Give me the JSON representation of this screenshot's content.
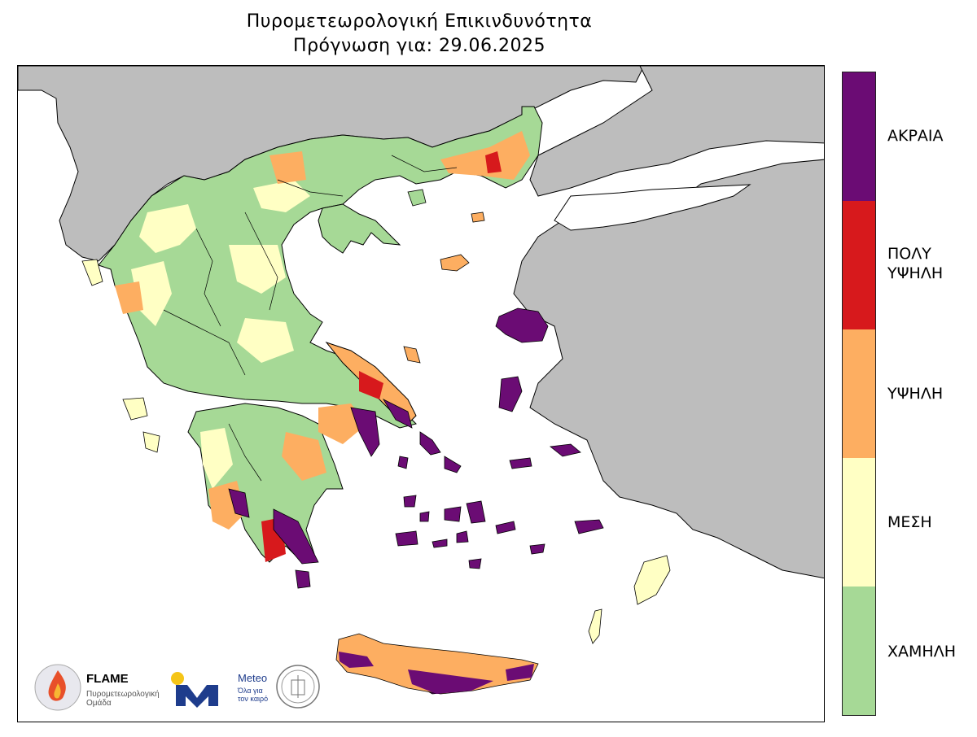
{
  "title": {
    "line1": "Πυρομετεωρολογική Επικινδυνότητα",
    "line2": "Πρόγνωση για: 29.06.2025"
  },
  "legend": {
    "levels": [
      {
        "label": "ΑΚΡΑΙΑ",
        "color": "#6b0c74"
      },
      {
        "label": "ΠΟΛΥ\nΥΨΗΛΗ",
        "color": "#d7191c"
      },
      {
        "label": "ΥΨΗΛΗ",
        "color": "#fdae61"
      },
      {
        "label": "ΜΕΣΗ",
        "color": "#ffffc4"
      },
      {
        "label": "ΧΑΜΗΛΗ",
        "color": "#a6d996"
      }
    ]
  },
  "map": {
    "land_color": "#bdbdbd",
    "sea_color": "#ffffff"
  },
  "logos": {
    "flame_name": "FLAME",
    "flame_sub": "Πυρομετεωρολογική\nΟμάδα",
    "meteo_name": "Meteo",
    "meteo_sub": "Όλα για\nτον καιρό"
  }
}
